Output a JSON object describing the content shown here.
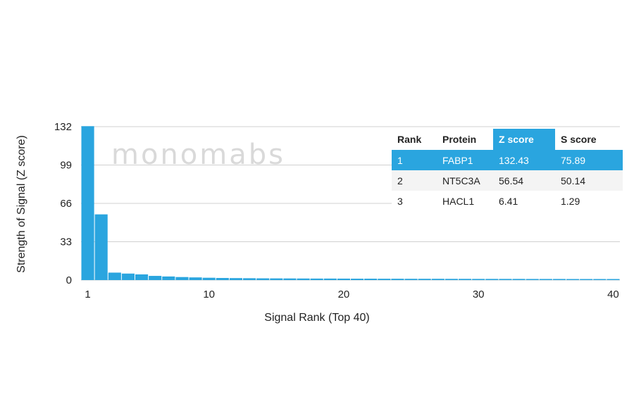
{
  "watermark": "monomabs",
  "colors": {
    "bar": "#2aa5df",
    "grid": "#d0d0d0",
    "highlight": "#2aa5df"
  },
  "chart_data": {
    "type": "bar",
    "xlabel": "Signal Rank (Top 40)",
    "ylabel": "Strength of Signal (Z score)",
    "ylim": [
      0,
      132
    ],
    "yticks": [
      0,
      33,
      66,
      99,
      132
    ],
    "xticks": [
      1,
      10,
      20,
      30,
      40
    ],
    "grid": true,
    "categories": [
      1,
      2,
      3,
      4,
      5,
      6,
      7,
      8,
      9,
      10,
      11,
      12,
      13,
      14,
      15,
      16,
      17,
      18,
      19,
      20,
      21,
      22,
      23,
      24,
      25,
      26,
      27,
      28,
      29,
      30,
      31,
      32,
      33,
      34,
      35,
      36,
      37,
      38,
      39,
      40
    ],
    "values": [
      132.43,
      56.54,
      6.41,
      5.6,
      4.9,
      3.6,
      3.1,
      2.6,
      2.3,
      2.0,
      1.8,
      1.7,
      1.6,
      1.5,
      1.45,
      1.4,
      1.35,
      1.3,
      1.3,
      1.25,
      1.2,
      1.2,
      1.15,
      1.15,
      1.1,
      1.1,
      1.1,
      1.05,
      1.05,
      1.0,
      1.0,
      1.0,
      1.0,
      0.95,
      0.95,
      0.95,
      0.9,
      0.9,
      0.9,
      0.9
    ]
  },
  "table": {
    "headers": [
      "Rank",
      "Protein",
      "Z score",
      "S score"
    ],
    "rows": [
      [
        "1",
        "FABP1",
        "132.43",
        "75.89"
      ],
      [
        "2",
        "NT5C3A",
        "56.54",
        "50.14"
      ],
      [
        "3",
        "HACL1",
        "6.41",
        "1.29"
      ]
    ]
  }
}
